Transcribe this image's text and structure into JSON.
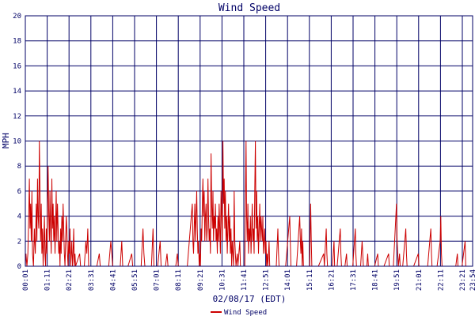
{
  "chart_data": {
    "type": "line",
    "title": "Wind Speed",
    "ylabel": "MPH",
    "xlabel": "02/08/17 (EDT)",
    "ylim": [
      0,
      20
    ],
    "yticks": [
      0,
      2,
      4,
      6,
      8,
      10,
      12,
      14,
      16,
      18,
      20
    ],
    "x_range_minutes": [
      1,
      1434
    ],
    "xticks": [
      "00:01",
      "01:11",
      "02:21",
      "03:31",
      "04:41",
      "05:51",
      "07:01",
      "08:11",
      "09:21",
      "10:31",
      "11:41",
      "12:51",
      "14:01",
      "15:11",
      "16:21",
      "17:31",
      "18:41",
      "19:51",
      "21:01",
      "22:11",
      "23:21",
      "23:54"
    ],
    "grid": true,
    "legend_position": "bottom-center",
    "colors": {
      "series": "#cc0000",
      "grid": "#000066",
      "axis": "#000066",
      "text": "#000066"
    },
    "series": [
      {
        "name": "Wind Speed",
        "points": [
          [
            1,
            0
          ],
          [
            3,
            1
          ],
          [
            6,
            0
          ],
          [
            9,
            1
          ],
          [
            12,
            4
          ],
          [
            14,
            7
          ],
          [
            16,
            3
          ],
          [
            18,
            5
          ],
          [
            20,
            2
          ],
          [
            22,
            6
          ],
          [
            24,
            1
          ],
          [
            27,
            0
          ],
          [
            30,
            3
          ],
          [
            33,
            1
          ],
          [
            36,
            5
          ],
          [
            38,
            2
          ],
          [
            40,
            7
          ],
          [
            42,
            4
          ],
          [
            44,
            3
          ],
          [
            46,
            10
          ],
          [
            48,
            6
          ],
          [
            50,
            2
          ],
          [
            52,
            5
          ],
          [
            54,
            1
          ],
          [
            56,
            3
          ],
          [
            58,
            0
          ],
          [
            60,
            2
          ],
          [
            62,
            4
          ],
          [
            64,
            1
          ],
          [
            66,
            0
          ],
          [
            68,
            3
          ],
          [
            70,
            1
          ],
          [
            72,
            5
          ],
          [
            74,
            8
          ],
          [
            76,
            4
          ],
          [
            78,
            2
          ],
          [
            80,
            6
          ],
          [
            82,
            3
          ],
          [
            84,
            1
          ],
          [
            86,
            7
          ],
          [
            88,
            3
          ],
          [
            90,
            5
          ],
          [
            92,
            2
          ],
          [
            94,
            4
          ],
          [
            96,
            1
          ],
          [
            98,
            3
          ],
          [
            100,
            6
          ],
          [
            102,
            2
          ],
          [
            104,
            5
          ],
          [
            106,
            3
          ],
          [
            108,
            1
          ],
          [
            110,
            2
          ],
          [
            112,
            0
          ],
          [
            114,
            3
          ],
          [
            116,
            1
          ],
          [
            118,
            4
          ],
          [
            120,
            2
          ],
          [
            122,
            5
          ],
          [
            124,
            3
          ],
          [
            126,
            1
          ],
          [
            128,
            0
          ],
          [
            130,
            2
          ],
          [
            132,
            4
          ],
          [
            134,
            3
          ],
          [
            136,
            1
          ],
          [
            138,
            0
          ],
          [
            140,
            2
          ],
          [
            142,
            1
          ],
          [
            144,
            3
          ],
          [
            146,
            0
          ],
          [
            148,
            1
          ],
          [
            150,
            2
          ],
          [
            152,
            0
          ],
          [
            154,
            1
          ],
          [
            156,
            3
          ],
          [
            158,
            0
          ],
          [
            160,
            1
          ],
          [
            162,
            0
          ],
          [
            175,
            1
          ],
          [
            178,
            0
          ],
          [
            190,
            0
          ],
          [
            195,
            2
          ],
          [
            198,
            1
          ],
          [
            201,
            3
          ],
          [
            204,
            0
          ],
          [
            215,
            0
          ],
          [
            230,
            0
          ],
          [
            238,
            1
          ],
          [
            241,
            0
          ],
          [
            252,
            0
          ],
          [
            268,
            0
          ],
          [
            275,
            2
          ],
          [
            278,
            1
          ],
          [
            281,
            0
          ],
          [
            305,
            0
          ],
          [
            310,
            2
          ],
          [
            313,
            0
          ],
          [
            330,
            0
          ],
          [
            342,
            1
          ],
          [
            345,
            0
          ],
          [
            372,
            0
          ],
          [
            378,
            3
          ],
          [
            381,
            1
          ],
          [
            384,
            0
          ],
          [
            405,
            0
          ],
          [
            410,
            3
          ],
          [
            413,
            0
          ],
          [
            425,
            0
          ],
          [
            433,
            2
          ],
          [
            436,
            0
          ],
          [
            450,
            0
          ],
          [
            455,
            1
          ],
          [
            458,
            0
          ],
          [
            483,
            0
          ],
          [
            488,
            1
          ],
          [
            491,
            0
          ],
          [
            520,
            0
          ],
          [
            536,
            5
          ],
          [
            538,
            2
          ],
          [
            540,
            1
          ],
          [
            542,
            3
          ],
          [
            544,
            5
          ],
          [
            546,
            2
          ],
          [
            548,
            4
          ],
          [
            550,
            6
          ],
          [
            552,
            3
          ],
          [
            554,
            1
          ],
          [
            556,
            2
          ],
          [
            558,
            0
          ],
          [
            560,
            1
          ],
          [
            562,
            0
          ],
          [
            564,
            3
          ],
          [
            566,
            2
          ],
          [
            568,
            5
          ],
          [
            570,
            7
          ],
          [
            572,
            4
          ],
          [
            574,
            6
          ],
          [
            576,
            2
          ],
          [
            578,
            4
          ],
          [
            580,
            5
          ],
          [
            582,
            2
          ],
          [
            584,
            3
          ],
          [
            586,
            7
          ],
          [
            588,
            4
          ],
          [
            590,
            2
          ],
          [
            592,
            3
          ],
          [
            594,
            1
          ],
          [
            596,
            9
          ],
          [
            598,
            5
          ],
          [
            600,
            3
          ],
          [
            602,
            6
          ],
          [
            604,
            2
          ],
          [
            606,
            4
          ],
          [
            608,
            3
          ],
          [
            610,
            5
          ],
          [
            612,
            2
          ],
          [
            614,
            3
          ],
          [
            616,
            1
          ],
          [
            618,
            4
          ],
          [
            620,
            2
          ],
          [
            622,
            5
          ],
          [
            624,
            3
          ],
          [
            626,
            1
          ],
          [
            628,
            6
          ],
          [
            630,
            4
          ],
          [
            632,
            2
          ],
          [
            634,
            10
          ],
          [
            636,
            5
          ],
          [
            638,
            7
          ],
          [
            640,
            3
          ],
          [
            642,
            6
          ],
          [
            644,
            2
          ],
          [
            646,
            4
          ],
          [
            648,
            1
          ],
          [
            650,
            3
          ],
          [
            652,
            5
          ],
          [
            654,
            2
          ],
          [
            656,
            4
          ],
          [
            658,
            1
          ],
          [
            660,
            3
          ],
          [
            662,
            0
          ],
          [
            664,
            2
          ],
          [
            666,
            1
          ],
          [
            668,
            0
          ],
          [
            670,
            6
          ],
          [
            672,
            2
          ],
          [
            674,
            1
          ],
          [
            676,
            0
          ],
          [
            680,
            1
          ],
          [
            682,
            0
          ],
          [
            688,
            2
          ],
          [
            690,
            0
          ],
          [
            704,
            0
          ],
          [
            708,
            10
          ],
          [
            710,
            4
          ],
          [
            712,
            2
          ],
          [
            714,
            5
          ],
          [
            716,
            1
          ],
          [
            718,
            3
          ],
          [
            720,
            2
          ],
          [
            722,
            4
          ],
          [
            724,
            1
          ],
          [
            726,
            3
          ],
          [
            728,
            5
          ],
          [
            730,
            2
          ],
          [
            732,
            3
          ],
          [
            734,
            1
          ],
          [
            736,
            6
          ],
          [
            738,
            10
          ],
          [
            740,
            3
          ],
          [
            742,
            6
          ],
          [
            744,
            2
          ],
          [
            746,
            4
          ],
          [
            748,
            1
          ],
          [
            750,
            3
          ],
          [
            752,
            5
          ],
          [
            754,
            2
          ],
          [
            756,
            4
          ],
          [
            758,
            3
          ],
          [
            760,
            2
          ],
          [
            762,
            4
          ],
          [
            764,
            1
          ],
          [
            766,
            2
          ],
          [
            768,
            3
          ],
          [
            770,
            1
          ],
          [
            772,
            2
          ],
          [
            774,
            0
          ],
          [
            776,
            1
          ],
          [
            778,
            0
          ],
          [
            782,
            2
          ],
          [
            784,
            0
          ],
          [
            805,
            0
          ],
          [
            810,
            3
          ],
          [
            812,
            1
          ],
          [
            814,
            0
          ],
          [
            835,
            0
          ],
          [
            848,
            4
          ],
          [
            850,
            2
          ],
          [
            852,
            0
          ],
          [
            870,
            0
          ],
          [
            880,
            4
          ],
          [
            882,
            2
          ],
          [
            884,
            1
          ],
          [
            886,
            3
          ],
          [
            888,
            0
          ],
          [
            890,
            2
          ],
          [
            892,
            0
          ],
          [
            912,
            0
          ],
          [
            915,
            5
          ],
          [
            917,
            2
          ],
          [
            919,
            0
          ],
          [
            940,
            0
          ],
          [
            957,
            1
          ],
          [
            959,
            0
          ],
          [
            965,
            3
          ],
          [
            967,
            1
          ],
          [
            969,
            0
          ],
          [
            985,
            0
          ],
          [
            990,
            2
          ],
          [
            992,
            0
          ],
          [
            1000,
            0
          ],
          [
            1010,
            3
          ],
          [
            1012,
            1
          ],
          [
            1014,
            0
          ],
          [
            1025,
            0
          ],
          [
            1030,
            1
          ],
          [
            1032,
            0
          ],
          [
            1050,
            0
          ],
          [
            1058,
            3
          ],
          [
            1060,
            1
          ],
          [
            1062,
            0
          ],
          [
            1075,
            0
          ],
          [
            1080,
            2
          ],
          [
            1082,
            1
          ],
          [
            1084,
            0
          ],
          [
            1095,
            0
          ],
          [
            1098,
            1
          ],
          [
            1100,
            0
          ],
          [
            1120,
            0
          ],
          [
            1130,
            1
          ],
          [
            1132,
            0
          ],
          [
            1150,
            0
          ],
          [
            1165,
            1
          ],
          [
            1167,
            0
          ],
          [
            1180,
            0
          ],
          [
            1190,
            5
          ],
          [
            1192,
            2
          ],
          [
            1194,
            1
          ],
          [
            1196,
            0
          ],
          [
            1200,
            1
          ],
          [
            1202,
            0
          ],
          [
            1210,
            0
          ],
          [
            1220,
            3
          ],
          [
            1222,
            1
          ],
          [
            1224,
            0
          ],
          [
            1245,
            0
          ],
          [
            1260,
            1
          ],
          [
            1262,
            0
          ],
          [
            1290,
            0
          ],
          [
            1300,
            3
          ],
          [
            1302,
            1
          ],
          [
            1304,
            0
          ],
          [
            1320,
            0
          ],
          [
            1330,
            2
          ],
          [
            1332,
            4
          ],
          [
            1334,
            1
          ],
          [
            1336,
            0
          ],
          [
            1350,
            0
          ],
          [
            1380,
            0
          ],
          [
            1385,
            1
          ],
          [
            1387,
            0
          ],
          [
            1400,
            0
          ],
          [
            1410,
            2
          ],
          [
            1412,
            0
          ],
          [
            1434,
            0
          ]
        ]
      }
    ]
  }
}
